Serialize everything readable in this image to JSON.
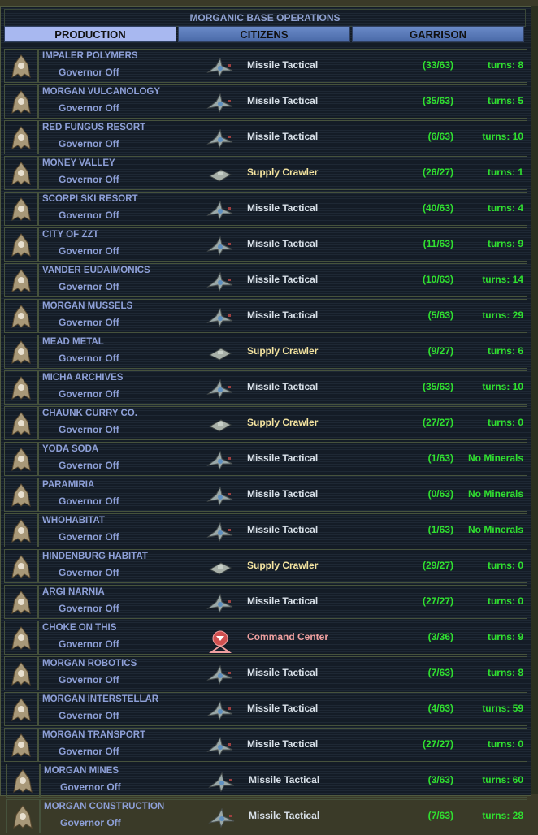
{
  "title": "MORGANIC BASE OPERATIONS",
  "tabs": [
    {
      "label": "PRODUCTION",
      "active": true
    },
    {
      "label": "CITIZENS",
      "active": false
    },
    {
      "label": "GARRISON",
      "active": false
    }
  ],
  "colors": {
    "missile": "#d8e0e8",
    "crawler": "#f4e4a0",
    "command": "#f0a0a0",
    "progress": "#30e030",
    "name": "#8ea0d8"
  },
  "bases": [
    {
      "name": "IMPALER POLYMERS",
      "governor": "Governor Off",
      "item": "Missile Tactical",
      "kind": "missile",
      "progress": "(33/63)",
      "turns": "turns:  8"
    },
    {
      "name": "MORGAN VULCANOLOGY",
      "governor": "Governor Off",
      "item": "Missile Tactical",
      "kind": "missile",
      "progress": "(35/63)",
      "turns": "turns:  5"
    },
    {
      "name": "RED FUNGUS RESORT",
      "governor": "Governor Off",
      "item": "Missile Tactical",
      "kind": "missile",
      "progress": "(6/63)",
      "turns": "turns:  10"
    },
    {
      "name": "MONEY VALLEY",
      "governor": "Governor Off",
      "item": "Supply Crawler",
      "kind": "crawler",
      "progress": "(26/27)",
      "turns": "turns:  1"
    },
    {
      "name": "SCORPI SKI RESORT",
      "governor": "Governor Off",
      "item": "Missile Tactical",
      "kind": "missile",
      "progress": "(40/63)",
      "turns": "turns:  4"
    },
    {
      "name": "CITY OF ZZT",
      "governor": "Governor Off",
      "item": "Missile Tactical",
      "kind": "missile",
      "progress": "(11/63)",
      "turns": "turns:  9"
    },
    {
      "name": "VANDER EUDAIMONICS",
      "governor": "Governor Off",
      "item": "Missile Tactical",
      "kind": "missile",
      "progress": "(10/63)",
      "turns": "turns:  14"
    },
    {
      "name": "MORGAN MUSSELS",
      "governor": "Governor Off",
      "item": "Missile Tactical",
      "kind": "missile",
      "progress": "(5/63)",
      "turns": "turns:  29"
    },
    {
      "name": "MEAD METAL",
      "governor": "Governor Off",
      "item": "Supply Crawler",
      "kind": "crawler",
      "progress": "(9/27)",
      "turns": "turns:  6"
    },
    {
      "name": "MICHA ARCHIVES",
      "governor": "Governor Off",
      "item": "Missile Tactical",
      "kind": "missile",
      "progress": "(35/63)",
      "turns": "turns:  10"
    },
    {
      "name": "CHAUNK CURRY CO.",
      "governor": "Governor Off",
      "item": "Supply Crawler",
      "kind": "crawler",
      "progress": "(27/27)",
      "turns": "turns:  0"
    },
    {
      "name": "YODA SODA",
      "governor": "Governor Off",
      "item": "Missile Tactical",
      "kind": "missile",
      "progress": "(1/63)",
      "turns": "No Minerals"
    },
    {
      "name": "PARAMIRIA",
      "governor": "Governor Off",
      "item": "Missile Tactical",
      "kind": "missile",
      "progress": "(0/63)",
      "turns": "No Minerals"
    },
    {
      "name": "WHOHABITAT",
      "governor": "Governor Off",
      "item": "Missile Tactical",
      "kind": "missile",
      "progress": "(1/63)",
      "turns": "No Minerals"
    },
    {
      "name": "HINDENBURG HABITAT",
      "governor": "Governor Off",
      "item": "Supply Crawler",
      "kind": "crawler",
      "progress": "(29/27)",
      "turns": "turns:  0"
    },
    {
      "name": "ARGI NARNIA",
      "governor": "Governor Off",
      "item": "Missile Tactical",
      "kind": "missile",
      "progress": "(27/27)",
      "turns": "turns:  0"
    },
    {
      "name": "CHOKE ON THIS",
      "governor": "Governor Off",
      "item": "Command Center",
      "kind": "command",
      "progress": "(3/36)",
      "turns": "turns:  9"
    },
    {
      "name": "MORGAN ROBOTICS",
      "governor": "Governor Off",
      "item": "Missile Tactical",
      "kind": "missile",
      "progress": "(7/63)",
      "turns": "turns:  8"
    },
    {
      "name": "MORGAN INTERSTELLAR",
      "governor": "Governor Off",
      "item": "Missile Tactical",
      "kind": "missile",
      "progress": "(4/63)",
      "turns": "turns:  59"
    },
    {
      "name": "MORGAN TRANSPORT",
      "governor": "Governor Off",
      "item": "Missile Tactical",
      "kind": "missile",
      "progress": "(27/27)",
      "turns": "turns:  0"
    },
    {
      "name": "MORGAN MINES",
      "governor": "Governor Off",
      "item": "Missile Tactical",
      "kind": "missile",
      "progress": "(3/63)",
      "turns": "turns:  60"
    },
    {
      "name": "MORGAN CONSTRUCTION",
      "governor": "Governor Off",
      "item": "Missile Tactical",
      "kind": "missile",
      "progress": "(7/63)",
      "turns": "turns:  28"
    }
  ]
}
